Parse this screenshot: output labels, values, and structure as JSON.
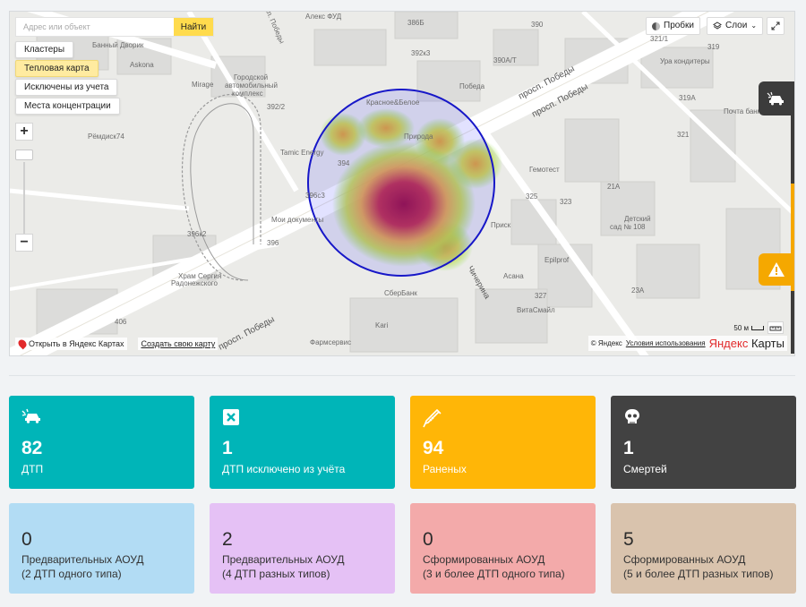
{
  "search": {
    "placeholder": "Адрес или объект",
    "button": "Найти"
  },
  "layers": [
    "Кластеры",
    "Тепловая карта",
    "Исключены из учета",
    "Места концентрации"
  ],
  "active_layer": "Тепловая карта",
  "map_controls": {
    "traffic": "Пробки",
    "layers": "Слои"
  },
  "map_labels": {
    "street_pobedy_1": "просп. Победы",
    "street_pobedy_2": "просп. Победы",
    "street_pobedy_3": "просп. Победы",
    "street_chicherina": "Чичерина",
    "alex_fud": "Алекс ФУД",
    "banny_dvorik": "Банный Дворик",
    "askona": "Askona",
    "mirage": "Mirage",
    "gorodskoy": "Городской",
    "avtomobilny": "автомобильный",
    "kompleks": "комплекс",
    "remdisk": "Рёмдиск74",
    "tamic": "Tamic Energy",
    "krasnoe": "Красное&Белое",
    "priroda": "Природа",
    "pobeda": "Победа",
    "ura": "Ура кондитеры",
    "pochta": "Почта банка",
    "gemotest": "Гемотест",
    "detsky_1": "Детский",
    "detsky_2": "сад № 108",
    "moi_doc": "Мои документы",
    "hram_1": "Храм Сергия",
    "hram_2": "Радонежского",
    "sberbank": "СберБанк",
    "kari": "Kari",
    "pharm": "Фармсервис",
    "eplifor": "Epilprof",
    "asana": "Асана",
    "vitasmail": "ВитаСмайл",
    "prisk": "Приск",
    "n3865": "386Б",
    "n390": "390",
    "n3923": "392к3",
    "n390a": "390А/Т",
    "n321": "321",
    "n3921": "321/1",
    "n319": "319",
    "n319a": "319А",
    "n3922": "392/2",
    "n394": "394",
    "n3963": "396с3",
    "n396k2": "396к2",
    "n396": "396",
    "n323": "323",
    "n325": "325",
    "n21a": "21А",
    "n23a": "23А",
    "n406": "406",
    "n327": "327"
  },
  "map_footer": {
    "open_link": "Открыть в Яндекс Картах",
    "make_map": "Создать свою карту",
    "copyright": "© Яндекс",
    "terms": "Условия использования",
    "logo_1": "Яндекс",
    "logo_2": " Карты",
    "scale": "50 м"
  },
  "stats_top": [
    {
      "value": "82",
      "label": "ДТП",
      "color": "#00b5b8",
      "icon": "car-crash-icon"
    },
    {
      "value": "1",
      "label": "ДТП исключено из учёта",
      "color": "#00b5b8",
      "icon": "close-box-icon"
    },
    {
      "value": "94",
      "label": "Раненых",
      "color": "#ffb607",
      "icon": "syringe-icon"
    },
    {
      "value": "1",
      "label": "Смертей",
      "color": "#424242",
      "icon": "skull-icon"
    }
  ],
  "stats_bottom": [
    {
      "value": "0",
      "label": "Предварительных АОУД",
      "sub": "(2 ДТП одного типа)",
      "color": "#b2dcf4"
    },
    {
      "value": "2",
      "label": "Предварительных АОУД",
      "sub": "(4 ДТП разных типов)",
      "color": "#e5c1f5"
    },
    {
      "value": "0",
      "label": "Сформированных АОУД",
      "sub": "(3 и более ДТП одного типа)",
      "color": "#f3aaaa"
    },
    {
      "value": "5",
      "label": "Сформированных АОУД",
      "sub": "(5 и более ДТП разных типов)",
      "color": "#d9c3ad"
    }
  ]
}
